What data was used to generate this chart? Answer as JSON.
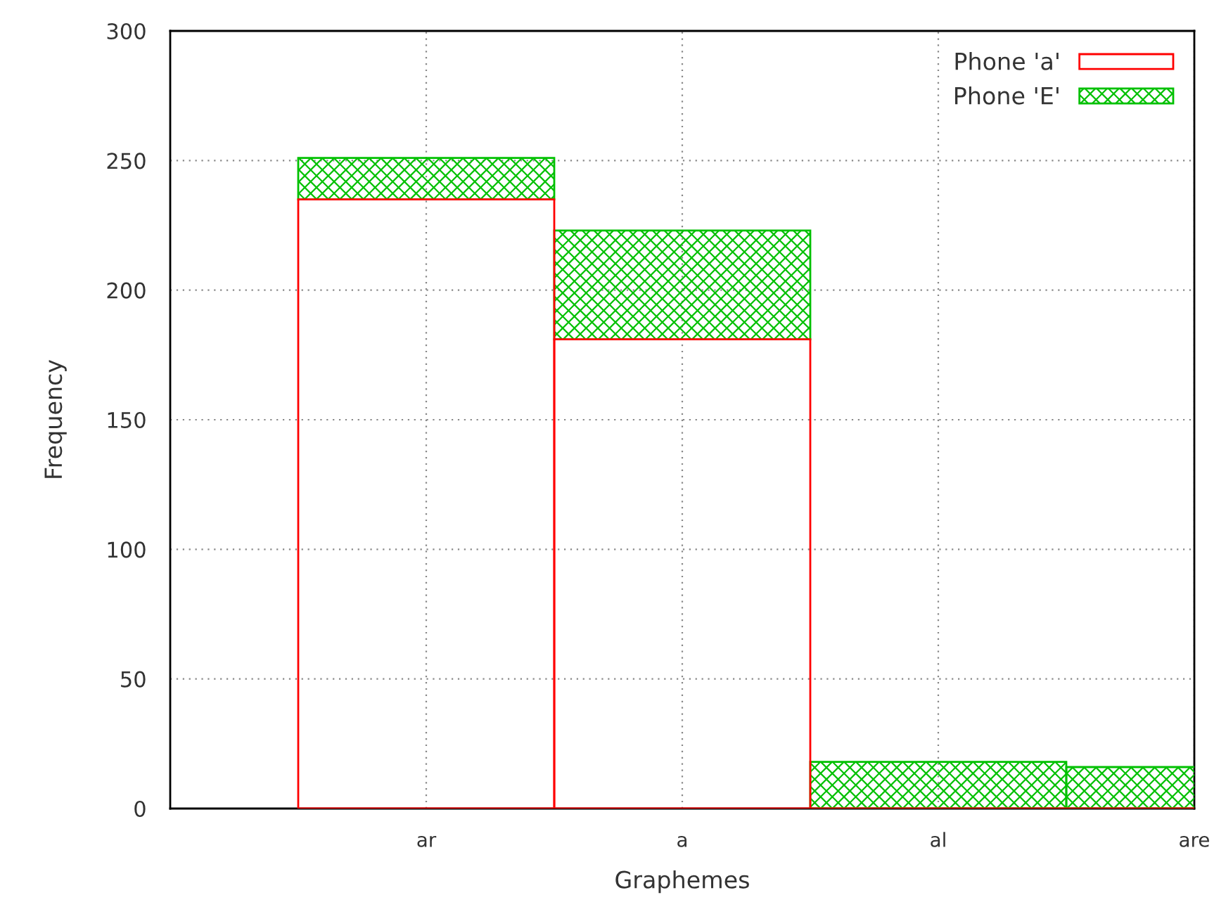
{
  "chart_data": {
    "type": "bar",
    "stacked": true,
    "xlabel": "Graphemes",
    "ylabel": "Frequency",
    "categories": [
      "ar",
      "a",
      "al",
      "are"
    ],
    "series": [
      {
        "name": "Phone 'a'",
        "color": "#ff0000",
        "values": [
          235,
          181,
          0,
          0
        ]
      },
      {
        "name": "Phone 'E'",
        "color": "#00c000",
        "values": [
          16,
          42,
          18,
          16
        ]
      }
    ],
    "ylim": [
      0,
      300
    ],
    "yticks": [
      0,
      50,
      100,
      150,
      200,
      250,
      300
    ],
    "grid": true,
    "legend": "top right"
  }
}
